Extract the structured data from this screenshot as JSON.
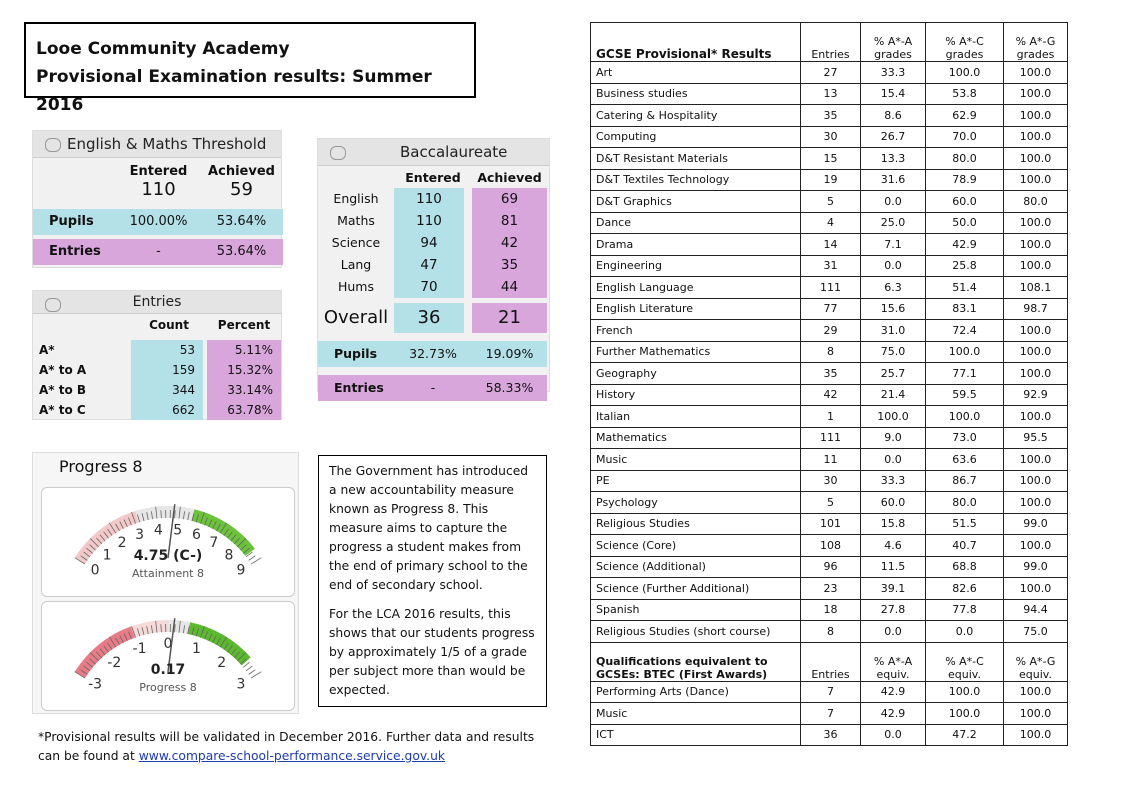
{
  "header": {
    "title": "Looe Community Academy",
    "subtitle": "Provisional Examination results: Summer 2016"
  },
  "threshold": {
    "title": "English & Maths Threshold",
    "columns": [
      "Entered",
      "Achieved"
    ],
    "totals": [
      "110",
      "59"
    ],
    "rows": [
      {
        "label": "Pupils",
        "values": [
          "100.00%",
          "53.64%"
        ]
      },
      {
        "label": "Entries",
        "values": [
          "-",
          "53.64%"
        ]
      }
    ]
  },
  "entries": {
    "title": "Entries",
    "columns": [
      "Count",
      "Percent"
    ],
    "rows": [
      [
        "A*",
        "53",
        "5.11%"
      ],
      [
        "A* to A",
        "159",
        "15.32%"
      ],
      [
        "A* to B",
        "344",
        "33.14%"
      ],
      [
        "A* to C",
        "662",
        "63.78%"
      ]
    ]
  },
  "bacc": {
    "title": "Baccalaureate",
    "columns": [
      "Entered",
      "Achieved"
    ],
    "rows": [
      [
        "English",
        "110",
        "69"
      ],
      [
        "Maths",
        "110",
        "81"
      ],
      [
        "Science",
        "94",
        "42"
      ],
      [
        "Lang",
        "47",
        "35"
      ],
      [
        "Hums",
        "70",
        "44"
      ]
    ],
    "overall": [
      "Overall",
      "36",
      "21"
    ],
    "pupils": [
      "Pupils",
      "32.73%",
      "19.09%"
    ],
    "entries": [
      "Entries",
      "-",
      "58.33%"
    ]
  },
  "progress": {
    "title": "Progress 8",
    "gauges": [
      {
        "ticks": [
          "0",
          "1",
          "2",
          "3",
          "4",
          "5",
          "6",
          "7",
          "8",
          "9"
        ],
        "value": "4.75 (C-)",
        "label": "Attainment 8"
      },
      {
        "ticks": [
          "-3",
          "-2",
          "-1",
          "0",
          "1",
          "2",
          "3"
        ],
        "value": "0.17",
        "label": "Progress 8"
      }
    ]
  },
  "note": [
    "The Government has introduced a new accountability measure known as Progress 8.  This measure aims to capture the progress a student makes from the end of primary school to the end of secondary school.",
    "For the LCA 2016 results, this shows that our students progress by approximately 1/5 of a grade per subject more than would be expected."
  ],
  "footnote": {
    "text": "*Provisional results will be validated in December 2016. Further data and results can be found at ",
    "link": "www.compare-school-performance.service.gov.uk"
  },
  "table": {
    "header": [
      "GCSE Provisional* Results",
      "Entries",
      "% A*-A grades",
      "% A*-C grades",
      "% A*-G grades"
    ],
    "rows": [
      [
        "Art",
        "27",
        "33.3",
        "100.0",
        "100.0"
      ],
      [
        "Business studies",
        "13",
        "15.4",
        "53.8",
        "100.0"
      ],
      [
        "Catering & Hospitality",
        "35",
        "8.6",
        "62.9",
        "100.0"
      ],
      [
        "Computing",
        "30",
        "26.7",
        "70.0",
        "100.0"
      ],
      [
        "D&T Resistant Materials",
        "15",
        "13.3",
        "80.0",
        "100.0"
      ],
      [
        "D&T Textiles Technology",
        "19",
        "31.6",
        "78.9",
        "100.0"
      ],
      [
        "D&T Graphics",
        "5",
        "0.0",
        "60.0",
        "80.0"
      ],
      [
        "Dance",
        "4",
        "25.0",
        "50.0",
        "100.0"
      ],
      [
        "Drama",
        "14",
        "7.1",
        "42.9",
        "100.0"
      ],
      [
        "Engineering",
        "31",
        "0.0",
        "25.8",
        "100.0"
      ],
      [
        "English Language",
        "111",
        "6.3",
        "51.4",
        "108.1"
      ],
      [
        "English Literature",
        "77",
        "15.6",
        "83.1",
        "98.7"
      ],
      [
        "French",
        "29",
        "31.0",
        "72.4",
        "100.0"
      ],
      [
        "Further Mathematics",
        "8",
        "75.0",
        "100.0",
        "100.0"
      ],
      [
        "Geography",
        "35",
        "25.7",
        "77.1",
        "100.0"
      ],
      [
        "History",
        "42",
        "21.4",
        "59.5",
        "92.9"
      ],
      [
        "Italian",
        "1",
        "100.0",
        "100.0",
        "100.0"
      ],
      [
        "Mathematics",
        "111",
        "9.0",
        "73.0",
        "95.5"
      ],
      [
        "Music",
        "11",
        "0.0",
        "63.6",
        "100.0"
      ],
      [
        "PE",
        "30",
        "33.3",
        "86.7",
        "100.0"
      ],
      [
        "Psychology",
        "5",
        "60.0",
        "80.0",
        "100.0"
      ],
      [
        "Religious Studies",
        "101",
        "15.8",
        "51.5",
        "99.0"
      ],
      [
        "Science (Core)",
        "108",
        "4.6",
        "40.7",
        "100.0"
      ],
      [
        "Science (Additional)",
        "96",
        "11.5",
        "68.8",
        "99.0"
      ],
      [
        "Science (Further Additional)",
        "23",
        "39.1",
        "82.6",
        "100.0"
      ],
      [
        "Spanish",
        "18",
        "27.8",
        "77.8",
        "94.4"
      ],
      [
        "Religious Studies (short course)",
        "8",
        "0.0",
        "0.0",
        "75.0"
      ]
    ],
    "header2": [
      "Qualifications equivalent to GCSEs: BTEC (First Awards)",
      "Entries",
      "% A*-A equiv.",
      "% A*-C equiv.",
      "% A*-G equiv."
    ],
    "rows2": [
      [
        "Performing Arts (Dance)",
        "7",
        "42.9",
        "100.0",
        "100.0"
      ],
      [
        "Music",
        "7",
        "42.9",
        "100.0",
        "100.0"
      ],
      [
        "ICT",
        "36",
        "0.0",
        "47.2",
        "100.0"
      ]
    ]
  }
}
